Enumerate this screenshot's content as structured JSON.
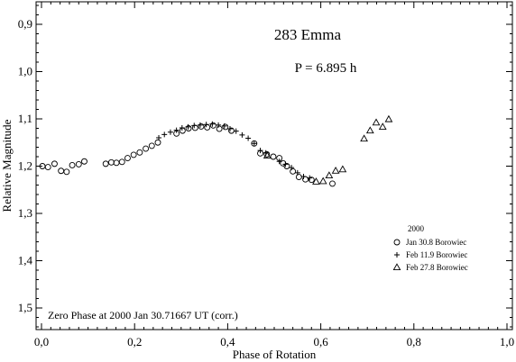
{
  "chart_data": {
    "type": "scatter",
    "title": "283 Emma",
    "annotation_period": "P = 6.895 h",
    "annotation_zero_phase": "Zero Phase at 2000 Jan 30.71667 UT (corr.)",
    "xlabel": "Phase of Rotation",
    "ylabel": "Relative Magnitude",
    "xlim": [
      0.0,
      1.0
    ],
    "ylim": [
      0.85,
      1.55
    ],
    "y_inverted": true,
    "grid": false,
    "x_ticks": [
      "0,0",
      "0,2",
      "0,4",
      "0,6",
      "0,8",
      "1,0"
    ],
    "x_tick_values": [
      0.0,
      0.2,
      0.4,
      0.6,
      0.8,
      1.0
    ],
    "y_ticks": [
      "0,9",
      "1,0",
      "1,1",
      "1,2",
      "1,3",
      "1,4",
      "1,5"
    ],
    "y_tick_values": [
      0.9,
      1.0,
      1.1,
      1.2,
      1.3,
      1.4,
      1.5
    ],
    "legend_title": "2000",
    "legend_position": "right",
    "series": [
      {
        "name": "Jan 30.8 Borowiec",
        "marker": "circle",
        "points": [
          [
            0.002,
            1.2
          ],
          [
            0.014,
            1.202
          ],
          [
            0.028,
            1.195
          ],
          [
            0.042,
            1.21
          ],
          [
            0.054,
            1.212
          ],
          [
            0.066,
            1.198
          ],
          [
            0.08,
            1.196
          ],
          [
            0.092,
            1.19
          ],
          [
            0.138,
            1.195
          ],
          [
            0.15,
            1.192
          ],
          [
            0.161,
            1.193
          ],
          [
            0.173,
            1.191
          ],
          [
            0.185,
            1.183
          ],
          [
            0.198,
            1.176
          ],
          [
            0.211,
            1.171
          ],
          [
            0.224,
            1.163
          ],
          [
            0.237,
            1.157
          ],
          [
            0.25,
            1.15
          ],
          [
            0.29,
            1.131
          ],
          [
            0.303,
            1.125
          ],
          [
            0.316,
            1.12
          ],
          [
            0.33,
            1.119
          ],
          [
            0.343,
            1.116
          ],
          [
            0.356,
            1.118
          ],
          [
            0.369,
            1.114
          ],
          [
            0.382,
            1.121
          ],
          [
            0.395,
            1.117
          ],
          [
            0.408,
            1.125
          ],
          [
            0.457,
            1.152
          ],
          [
            0.47,
            1.173
          ],
          [
            0.484,
            1.175
          ],
          [
            0.498,
            1.18
          ],
          [
            0.511,
            1.183
          ],
          [
            0.519,
            1.194
          ],
          [
            0.527,
            1.2
          ],
          [
            0.54,
            1.211
          ],
          [
            0.553,
            1.223
          ],
          [
            0.567,
            1.228
          ],
          [
            0.58,
            1.229
          ],
          [
            0.625,
            1.237
          ]
        ]
      },
      {
        "name": "Feb 11.9 Borowiec",
        "marker": "plus",
        "points": [
          [
            0.252,
            1.14
          ],
          [
            0.264,
            1.133
          ],
          [
            0.277,
            1.128
          ],
          [
            0.29,
            1.124
          ],
          [
            0.302,
            1.119
          ],
          [
            0.315,
            1.117
          ],
          [
            0.328,
            1.114
          ],
          [
            0.341,
            1.113
          ],
          [
            0.354,
            1.112
          ],
          [
            0.367,
            1.111
          ],
          [
            0.38,
            1.113
          ],
          [
            0.393,
            1.115
          ],
          [
            0.405,
            1.121
          ],
          [
            0.418,
            1.126
          ],
          [
            0.431,
            1.134
          ],
          [
            0.444,
            1.141
          ],
          [
            0.457,
            1.152
          ],
          [
            0.47,
            1.167
          ],
          [
            0.482,
            1.172
          ],
          [
            0.511,
            1.19
          ],
          [
            0.524,
            1.196
          ],
          [
            0.537,
            1.203
          ],
          [
            0.55,
            1.214
          ],
          [
            0.563,
            1.222
          ],
          [
            0.576,
            1.225
          ]
        ]
      },
      {
        "name": "Feb 27.8 Borowiec",
        "marker": "triangle",
        "points": [
          [
            0.485,
            1.178
          ],
          [
            0.59,
            1.233
          ],
          [
            0.605,
            1.232
          ],
          [
            0.618,
            1.22
          ],
          [
            0.632,
            1.21
          ],
          [
            0.647,
            1.207
          ],
          [
            0.693,
            1.142
          ],
          [
            0.706,
            1.125
          ],
          [
            0.719,
            1.108
          ],
          [
            0.733,
            1.117
          ],
          [
            0.746,
            1.101
          ]
        ]
      }
    ]
  }
}
